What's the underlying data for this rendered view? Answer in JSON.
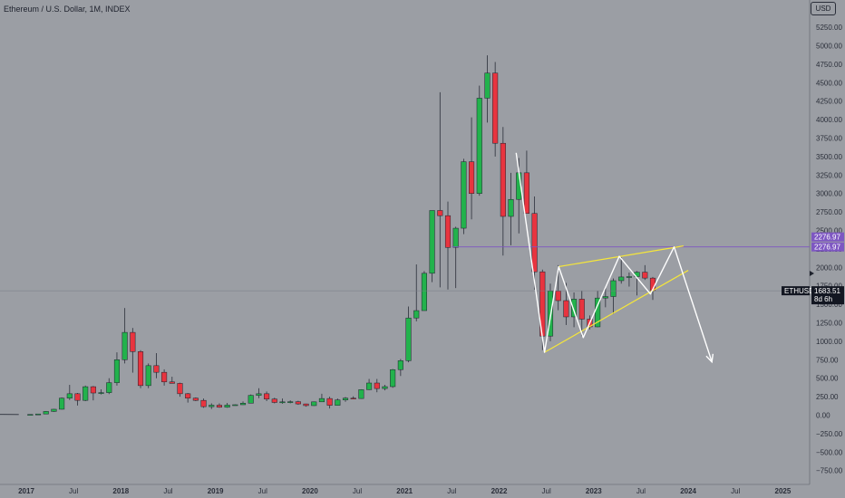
{
  "header": {
    "title": "Ethereum / U.S. Dollar, 1M, INDEX",
    "currency": "USD"
  },
  "colors": {
    "background": "#9b9ea4",
    "up": "#22b24c",
    "down": "#e8343f",
    "wick": "#2a2e39",
    "annotation_white": "#ffffff",
    "annotation_yellow": "#f5e63a",
    "level_line": "#7e57c2",
    "price_line": "#787b86"
  },
  "chart_data": {
    "type": "candlestick",
    "symbol": "ETHUSD",
    "interval": "1M",
    "ylim": [
      -800,
      5450
    ],
    "y_ticks": [
      -750,
      -500,
      -250,
      0,
      250,
      500,
      750,
      1000,
      1250,
      1500,
      1750,
      2000,
      2250,
      2500,
      2750,
      3000,
      3250,
      3500,
      3750,
      4000,
      4250,
      4500,
      4750,
      5000,
      5250
    ],
    "y_tick_labels": [
      "−750.00",
      "−500.00",
      "−250.00",
      "0.00",
      "250.00",
      "500.00",
      "750.00",
      "1000.00",
      "1250.00",
      "1500.00",
      "1750.00",
      "2000.00",
      "2250.00",
      "2500.00",
      "2750.00",
      "3000.00",
      "3250.00",
      "3500.00",
      "3750.00",
      "4000.00",
      "4250.00",
      "4500.00",
      "4750.00",
      "5000.00",
      "5250.00"
    ],
    "x_labels": [
      {
        "label": "2017",
        "t": 2017.0,
        "year": true
      },
      {
        "label": "Jul",
        "t": 2017.5,
        "year": false
      },
      {
        "label": "2018",
        "t": 2018.0,
        "year": true
      },
      {
        "label": "Jul",
        "t": 2018.5,
        "year": false
      },
      {
        "label": "2019",
        "t": 2019.0,
        "year": true
      },
      {
        "label": "Jul",
        "t": 2019.5,
        "year": false
      },
      {
        "label": "2020",
        "t": 2020.0,
        "year": true
      },
      {
        "label": "Jul",
        "t": 2020.5,
        "year": false
      },
      {
        "label": "2021",
        "t": 2021.0,
        "year": true
      },
      {
        "label": "Jul",
        "t": 2021.5,
        "year": false
      },
      {
        "label": "2022",
        "t": 2022.0,
        "year": true
      },
      {
        "label": "Jul",
        "t": 2022.5,
        "year": false
      },
      {
        "label": "2023",
        "t": 2023.0,
        "year": true
      },
      {
        "label": "Jul",
        "t": 2023.5,
        "year": false
      },
      {
        "label": "2024",
        "t": 2024.0,
        "year": true
      },
      {
        "label": "Jul",
        "t": 2024.5,
        "year": false
      },
      {
        "label": "2025",
        "t": 2025.0,
        "year": true
      }
    ],
    "pre_history": [
      {
        "t": 2016.0,
        "v": 1
      },
      {
        "t": 2016.25,
        "v": 8
      },
      {
        "t": 2016.5,
        "v": 12
      },
      {
        "t": 2016.75,
        "v": 10
      },
      {
        "t": 2016.92,
        "v": 8
      }
    ],
    "candles": [
      {
        "date": "2017-01",
        "o": 8,
        "h": 12,
        "l": 8,
        "c": 10
      },
      {
        "date": "2017-02",
        "o": 10,
        "h": 17,
        "l": 10,
        "c": 16
      },
      {
        "date": "2017-03",
        "o": 16,
        "h": 55,
        "l": 15,
        "c": 50
      },
      {
        "date": "2017-04",
        "o": 50,
        "h": 85,
        "l": 45,
        "c": 80
      },
      {
        "date": "2017-05",
        "o": 80,
        "h": 240,
        "l": 75,
        "c": 230
      },
      {
        "date": "2017-06",
        "o": 230,
        "h": 410,
        "l": 205,
        "c": 290
      },
      {
        "date": "2017-07",
        "o": 290,
        "h": 300,
        "l": 130,
        "c": 200
      },
      {
        "date": "2017-08",
        "o": 200,
        "h": 400,
        "l": 190,
        "c": 385
      },
      {
        "date": "2017-09",
        "o": 385,
        "h": 395,
        "l": 200,
        "c": 300
      },
      {
        "date": "2017-10",
        "o": 300,
        "h": 350,
        "l": 280,
        "c": 305
      },
      {
        "date": "2017-11",
        "o": 305,
        "h": 500,
        "l": 285,
        "c": 440
      },
      {
        "date": "2017-12",
        "o": 440,
        "h": 850,
        "l": 400,
        "c": 750
      },
      {
        "date": "2018-01",
        "o": 750,
        "h": 1450,
        "l": 700,
        "c": 1120
      },
      {
        "date": "2018-02",
        "o": 1120,
        "h": 1180,
        "l": 575,
        "c": 860
      },
      {
        "date": "2018-03",
        "o": 860,
        "h": 880,
        "l": 365,
        "c": 400
      },
      {
        "date": "2018-04",
        "o": 400,
        "h": 700,
        "l": 365,
        "c": 670
      },
      {
        "date": "2018-05",
        "o": 670,
        "h": 840,
        "l": 500,
        "c": 580
      },
      {
        "date": "2018-06",
        "o": 580,
        "h": 620,
        "l": 400,
        "c": 450
      },
      {
        "date": "2018-07",
        "o": 450,
        "h": 520,
        "l": 430,
        "c": 430
      },
      {
        "date": "2018-08",
        "o": 430,
        "h": 440,
        "l": 250,
        "c": 290
      },
      {
        "date": "2018-09",
        "o": 290,
        "h": 300,
        "l": 170,
        "c": 230
      },
      {
        "date": "2018-10",
        "o": 230,
        "h": 240,
        "l": 190,
        "c": 200
      },
      {
        "date": "2018-11",
        "o": 200,
        "h": 225,
        "l": 100,
        "c": 115
      },
      {
        "date": "2018-12",
        "o": 115,
        "h": 160,
        "l": 83,
        "c": 135
      },
      {
        "date": "2019-01",
        "o": 135,
        "h": 160,
        "l": 100,
        "c": 107
      },
      {
        "date": "2019-02",
        "o": 107,
        "h": 165,
        "l": 100,
        "c": 136
      },
      {
        "date": "2019-03",
        "o": 136,
        "h": 145,
        "l": 130,
        "c": 141
      },
      {
        "date": "2019-04",
        "o": 141,
        "h": 185,
        "l": 140,
        "c": 162
      },
      {
        "date": "2019-05",
        "o": 162,
        "h": 280,
        "l": 160,
        "c": 268
      },
      {
        "date": "2019-06",
        "o": 268,
        "h": 365,
        "l": 230,
        "c": 290
      },
      {
        "date": "2019-07",
        "o": 290,
        "h": 320,
        "l": 190,
        "c": 218
      },
      {
        "date": "2019-08",
        "o": 218,
        "h": 235,
        "l": 160,
        "c": 172
      },
      {
        "date": "2019-09",
        "o": 172,
        "h": 225,
        "l": 155,
        "c": 180
      },
      {
        "date": "2019-10",
        "o": 180,
        "h": 200,
        "l": 160,
        "c": 182
      },
      {
        "date": "2019-11",
        "o": 182,
        "h": 195,
        "l": 140,
        "c": 152
      },
      {
        "date": "2019-12",
        "o": 152,
        "h": 155,
        "l": 115,
        "c": 129
      },
      {
        "date": "2020-01",
        "o": 129,
        "h": 185,
        "l": 125,
        "c": 180
      },
      {
        "date": "2020-02",
        "o": 180,
        "h": 290,
        "l": 215,
        "c": 225
      },
      {
        "date": "2020-03",
        "o": 225,
        "h": 250,
        "l": 90,
        "c": 133
      },
      {
        "date": "2020-04",
        "o": 133,
        "h": 225,
        "l": 130,
        "c": 206
      },
      {
        "date": "2020-05",
        "o": 206,
        "h": 245,
        "l": 180,
        "c": 230
      },
      {
        "date": "2020-06",
        "o": 230,
        "h": 255,
        "l": 215,
        "c": 225
      },
      {
        "date": "2020-07",
        "o": 225,
        "h": 350,
        "l": 222,
        "c": 345
      },
      {
        "date": "2020-08",
        "o": 345,
        "h": 490,
        "l": 340,
        "c": 435
      },
      {
        "date": "2020-09",
        "o": 435,
        "h": 490,
        "l": 310,
        "c": 360
      },
      {
        "date": "2020-10",
        "o": 360,
        "h": 410,
        "l": 335,
        "c": 386
      },
      {
        "date": "2020-11",
        "o": 386,
        "h": 625,
        "l": 370,
        "c": 616
      },
      {
        "date": "2020-12",
        "o": 616,
        "h": 760,
        "l": 530,
        "c": 737
      },
      {
        "date": "2021-01",
        "o": 737,
        "h": 1470,
        "l": 715,
        "c": 1315
      },
      {
        "date": "2021-02",
        "o": 1315,
        "h": 2040,
        "l": 1270,
        "c": 1415
      },
      {
        "date": "2021-03",
        "o": 1415,
        "h": 1950,
        "l": 1430,
        "c": 1920
      },
      {
        "date": "2021-04",
        "o": 1920,
        "h": 2750,
        "l": 1800,
        "c": 2770
      },
      {
        "date": "2021-05",
        "o": 2770,
        "h": 4370,
        "l": 1730,
        "c": 2700
      },
      {
        "date": "2021-06",
        "o": 2700,
        "h": 2890,
        "l": 1700,
        "c": 2270
      },
      {
        "date": "2021-07",
        "o": 2270,
        "h": 2550,
        "l": 1720,
        "c": 2530
      },
      {
        "date": "2021-08",
        "o": 2530,
        "h": 3470,
        "l": 2450,
        "c": 3430
      },
      {
        "date": "2021-09",
        "o": 3430,
        "h": 4030,
        "l": 2650,
        "c": 3000
      },
      {
        "date": "2021-10",
        "o": 3000,
        "h": 4460,
        "l": 2970,
        "c": 4290
      },
      {
        "date": "2021-11",
        "o": 4290,
        "h": 4870,
        "l": 3960,
        "c": 4630
      },
      {
        "date": "2021-12",
        "o": 4630,
        "h": 4780,
        "l": 3500,
        "c": 3680
      },
      {
        "date": "2022-01",
        "o": 3680,
        "h": 3900,
        "l": 2160,
        "c": 2690
      },
      {
        "date": "2022-02",
        "o": 2690,
        "h": 3280,
        "l": 2300,
        "c": 2920
      },
      {
        "date": "2022-03",
        "o": 2920,
        "h": 3480,
        "l": 2460,
        "c": 3280
      },
      {
        "date": "2022-04",
        "o": 3280,
        "h": 3580,
        "l": 2780,
        "c": 2730
      },
      {
        "date": "2022-05",
        "o": 2730,
        "h": 2960,
        "l": 1700,
        "c": 1940
      },
      {
        "date": "2022-06",
        "o": 1940,
        "h": 1970,
        "l": 880,
        "c": 1070
      },
      {
        "date": "2022-07",
        "o": 1070,
        "h": 1780,
        "l": 1000,
        "c": 1680
      },
      {
        "date": "2022-08",
        "o": 1680,
        "h": 2030,
        "l": 1420,
        "c": 1550
      },
      {
        "date": "2022-09",
        "o": 1550,
        "h": 1790,
        "l": 1220,
        "c": 1330
      },
      {
        "date": "2022-10",
        "o": 1330,
        "h": 1660,
        "l": 1190,
        "c": 1570
      },
      {
        "date": "2022-11",
        "o": 1570,
        "h": 1680,
        "l": 1070,
        "c": 1300
      },
      {
        "date": "2022-12",
        "o": 1300,
        "h": 1350,
        "l": 1160,
        "c": 1195
      },
      {
        "date": "2023-01",
        "o": 1195,
        "h": 1680,
        "l": 1190,
        "c": 1585
      },
      {
        "date": "2023-02",
        "o": 1585,
        "h": 1740,
        "l": 1460,
        "c": 1605
      },
      {
        "date": "2023-03",
        "o": 1605,
        "h": 1850,
        "l": 1370,
        "c": 1820
      },
      {
        "date": "2023-04",
        "o": 1820,
        "h": 2140,
        "l": 1780,
        "c": 1870
      },
      {
        "date": "2023-05",
        "o": 1870,
        "h": 1930,
        "l": 1740,
        "c": 1875
      },
      {
        "date": "2023-06",
        "o": 1875,
        "h": 1950,
        "l": 1620,
        "c": 1935
      },
      {
        "date": "2023-07",
        "o": 1935,
        "h": 2030,
        "l": 1830,
        "c": 1855
      },
      {
        "date": "2023-08",
        "o": 1855,
        "h": 1870,
        "l": 1560,
        "c": 1684
      }
    ],
    "annotations": {
      "wedge_path": [
        {
          "t": 2022.18,
          "v": 3550
        },
        {
          "t": 2022.48,
          "v": 850
        },
        {
          "t": 2022.63,
          "v": 2010
        },
        {
          "t": 2022.89,
          "v": 1050
        },
        {
          "t": 2023.27,
          "v": 2150
        },
        {
          "t": 2023.6,
          "v": 1640
        },
        {
          "t": 2023.85,
          "v": 2277
        },
        {
          "t": 2024.25,
          "v": 720
        }
      ],
      "upper_trendline": [
        {
          "t": 2022.63,
          "v": 2010
        },
        {
          "t": 2023.95,
          "v": 2290
        }
      ],
      "lower_trendline": [
        {
          "t": 2022.48,
          "v": 850
        },
        {
          "t": 2024.0,
          "v": 1960
        }
      ],
      "level": 2276.97,
      "level_start_t": 2021.5
    },
    "price_tags": {
      "level_label_1": "2276.97",
      "level_label_2": "2276.97",
      "symbol_label": "ETHUSD",
      "last_price_label": "1683.51",
      "countdown_label": "8d 6h",
      "last_price": 1683.51
    }
  }
}
